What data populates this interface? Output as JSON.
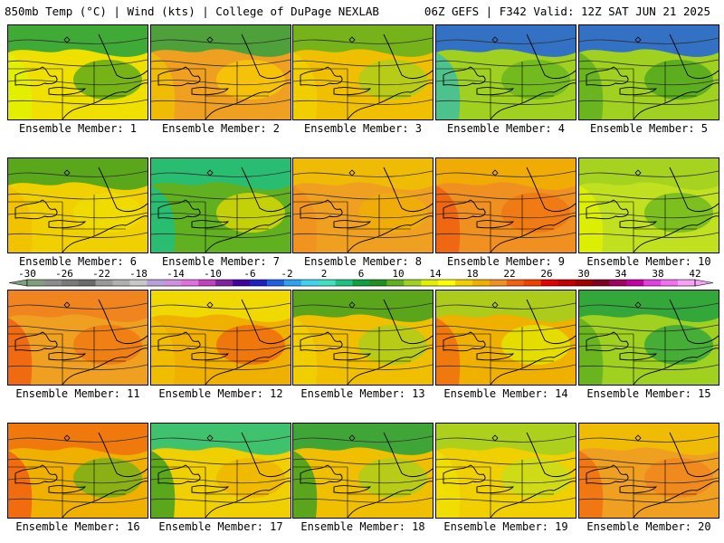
{
  "header": {
    "left": "850mb Temp (°C) | Wind (kts) | College of DuPage NEXLAB",
    "right": "06Z GEFS | F342 Valid: 12Z SAT JUN 21 2025"
  },
  "colorbar": {
    "tick_labels": [
      "-30",
      "-26",
      "-22",
      "-18",
      "-14",
      "-10",
      "-6",
      "-2",
      "2",
      "6",
      "10",
      "14",
      "18",
      "22",
      "26",
      "30",
      "34",
      "38",
      "42"
    ],
    "min": -30,
    "max": 42,
    "step": 2,
    "colors": [
      "#7f9f7f",
      "#8c8c8c",
      "#7a7a7a",
      "#6b6b6b",
      "#999999",
      "#b0b0b0",
      "#c8c8c8",
      "#b8a0d8",
      "#d090e0",
      "#e070e0",
      "#c040c0",
      "#8020a0",
      "#4000a0",
      "#2020c0",
      "#1e60e0",
      "#30a0f0",
      "#40d0f0",
      "#40e0c0",
      "#20c080",
      "#10a040",
      "#209020",
      "#60b020",
      "#a0d020",
      "#e0f000",
      "#ffff00",
      "#f0d000",
      "#f0b000",
      "#f09020",
      "#f06010",
      "#f04000",
      "#e00000",
      "#c00000",
      "#a00000",
      "#800020",
      "#a00060",
      "#c000a0",
      "#e040e0",
      "#f070f0",
      "#f8a0f8"
    ]
  },
  "panels": [
    {
      "label": "Ensemble Member: 1",
      "base": "#f0e000",
      "north": "#20a040",
      "west": "#e0f000",
      "blob": "#40a020"
    },
    {
      "label": "Ensemble Member: 2",
      "base": "#f0a020",
      "north": "#30a040",
      "west": "#f0c000",
      "blob": "#f8d000"
    },
    {
      "label": "Ensemble Member: 3",
      "base": "#f0c000",
      "north": "#60b020",
      "west": "#f0d000",
      "blob": "#a0d020"
    },
    {
      "label": "Ensemble Member: 4",
      "base": "#a0d020",
      "north": "#1e60e0",
      "west": "#40c0a0",
      "blob": "#60b020"
    },
    {
      "label": "Ensemble Member: 5",
      "base": "#a0d020",
      "north": "#1e60e0",
      "west": "#60b020",
      "blob": "#40a020"
    },
    {
      "label": "Ensemble Member: 6",
      "base": "#f0d000",
      "north": "#40a020",
      "west": "#f0c000",
      "blob": "#f0e000"
    },
    {
      "label": "Ensemble Member: 7",
      "base": "#60b020",
      "north": "#20c080",
      "west": "#20c080",
      "blob": "#f0e000"
    },
    {
      "label": "Ensemble Member: 8",
      "base": "#f0a020",
      "north": "#f0c000",
      "west": "#f09020",
      "blob": "#f0b000"
    },
    {
      "label": "Ensemble Member: 9",
      "base": "#f09020",
      "north": "#f0b000",
      "west": "#f06010",
      "blob": "#f07010"
    },
    {
      "label": "Ensemble Member: 10",
      "base": "#c0e020",
      "north": "#a0d020",
      "west": "#e0f000",
      "blob": "#60b020"
    },
    {
      "label": "Ensemble Member: 11",
      "base": "#f0a020",
      "north": "#f08020",
      "west": "#f06010",
      "blob": "#f07010"
    },
    {
      "label": "Ensemble Member: 12",
      "base": "#f0b000",
      "north": "#f0e000",
      "west": "#f0c000",
      "blob": "#f06010"
    },
    {
      "label": "Ensemble Member: 13",
      "base": "#f0c000",
      "north": "#40a020",
      "west": "#f0d000",
      "blob": "#a0d020"
    },
    {
      "label": "Ensemble Member: 14",
      "base": "#f0b000",
      "north": "#a0d020",
      "west": "#f07010",
      "blob": "#e0f000"
    },
    {
      "label": "Ensemble Member: 15",
      "base": "#a0d020",
      "north": "#20a040",
      "west": "#60b020",
      "blob": "#20a040"
    },
    {
      "label": "Ensemble Member: 16",
      "base": "#f0b000",
      "north": "#f07010",
      "west": "#f06010",
      "blob": "#60b020"
    },
    {
      "label": "Ensemble Member: 17",
      "base": "#f0d000",
      "north": "#20c080",
      "west": "#40a020",
      "blob": "#f0b000"
    },
    {
      "label": "Ensemble Member: 18",
      "base": "#f0c000",
      "north": "#20a040",
      "west": "#40a020",
      "blob": "#a0d020"
    },
    {
      "label": "Ensemble Member: 19",
      "base": "#f0d000",
      "north": "#a0d020",
      "west": "#f0e000",
      "blob": "#c0e020"
    },
    {
      "label": "Ensemble Member: 20",
      "base": "#f0a020",
      "north": "#f0c000",
      "west": "#f07010",
      "blob": "#f08020"
    }
  ]
}
